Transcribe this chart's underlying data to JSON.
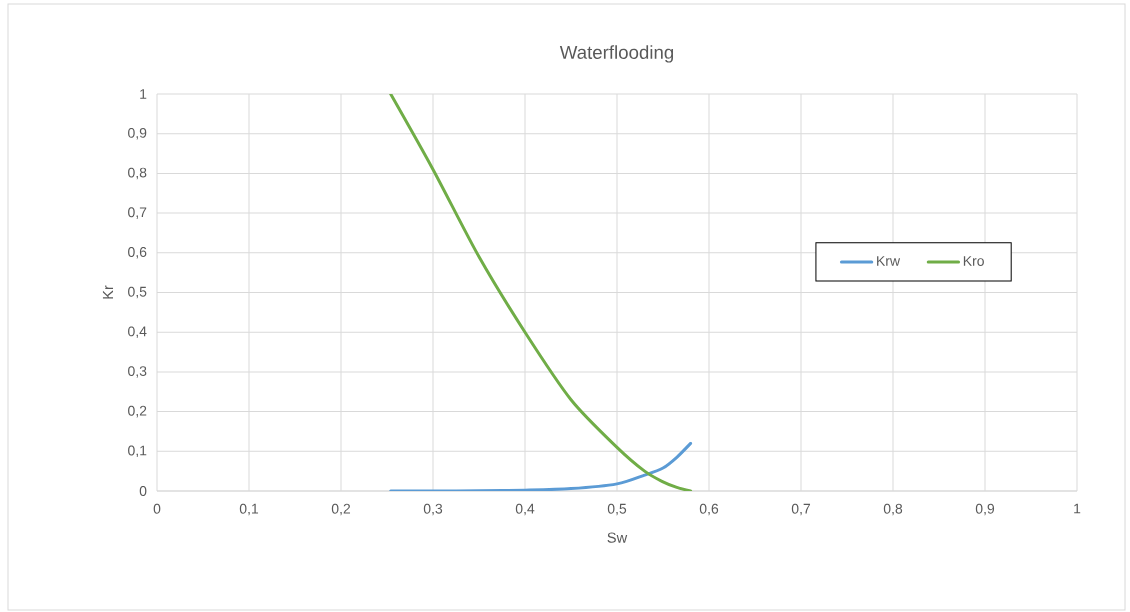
{
  "chart_data": {
    "type": "line",
    "title": "Waterflooding",
    "xlabel": "Sw",
    "ylabel": "Kr",
    "xlim": [
      0,
      1
    ],
    "ylim": [
      0,
      1
    ],
    "xticks": [
      0,
      {
        "value": 0.1,
        "label": "0,1"
      },
      {
        "value": 0.2,
        "label": "0,2"
      },
      {
        "value": 0.3,
        "label": "0,3"
      },
      {
        "value": 0.4,
        "label": "0,4"
      },
      {
        "value": 0.5,
        "label": "0,5"
      },
      {
        "value": 0.6,
        "label": "0,6"
      },
      {
        "value": 0.7,
        "label": "0,7"
      },
      {
        "value": 0.8,
        "label": "0,8"
      },
      {
        "value": 0.9,
        "label": "0,9"
      },
      1
    ],
    "yticks": [
      0,
      {
        "value": 0.1,
        "label": "0,1"
      },
      {
        "value": 0.2,
        "label": "0,2"
      },
      {
        "value": 0.3,
        "label": "0,3"
      },
      {
        "value": 0.4,
        "label": "0,4"
      },
      {
        "value": 0.5,
        "label": "0,5"
      },
      {
        "value": 0.6,
        "label": "0,6"
      },
      {
        "value": 0.7,
        "label": "0,7"
      },
      {
        "value": 0.8,
        "label": "0,8"
      },
      {
        "value": 0.9,
        "label": "0,9"
      },
      1
    ],
    "grid": true,
    "legend": "right",
    "marker": "none",
    "line_style": "solid",
    "x": [
      0.254,
      0.3,
      0.35,
      0.4,
      0.45,
      0.5,
      0.53,
      0.55,
      0.565,
      0.58
    ],
    "series": [
      {
        "name": "Krw",
        "color": "#5b9bd5",
        "values": [
          0,
          0,
          0.0005,
          0.002,
          0.006,
          0.018,
          0.04,
          0.058,
          0.085,
          0.12
        ]
      },
      {
        "name": "Kro",
        "color": "#70ad47",
        "values": [
          1.0,
          0.81,
          0.59,
          0.4,
          0.23,
          0.11,
          0.05,
          0.023,
          0.009,
          0
        ]
      }
    ]
  }
}
